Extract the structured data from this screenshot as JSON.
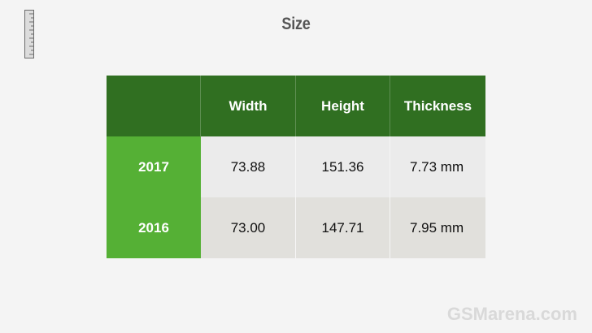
{
  "title": "Size",
  "table": {
    "headers": [
      "",
      "Width",
      "Height",
      "Thickness"
    ],
    "rows": [
      {
        "label": "2017",
        "width": "73.88",
        "height": "151.36",
        "thickness": "7.73 mm"
      },
      {
        "label": "2016",
        "width": "73.00",
        "height": "147.71",
        "thickness": "7.95 mm"
      }
    ]
  },
  "watermark": "GSMarena.com",
  "icons": {
    "top_left": "ruler-icon"
  },
  "colors": {
    "header_bg": "#306f21",
    "row_label_bg": "#55b035",
    "row1_bg": "#ebebeb",
    "row2_bg": "#e1e0dc"
  }
}
